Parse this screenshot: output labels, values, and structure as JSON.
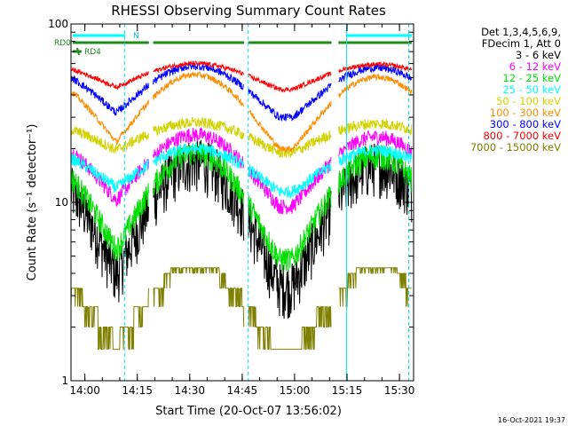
{
  "chart_data": {
    "type": "line",
    "title": "RHESSI Observing Summary Count Rates",
    "xlabel": "Start Time (20-Oct-07 13:56:02)",
    "ylabel": "Count Rate (s⁻¹ detector⁻¹)",
    "yscale": "log",
    "ylim": [
      1,
      100
    ],
    "xlim_minutes": [
      0,
      98
    ],
    "x_ticks": [
      "14:00",
      "14:15",
      "14:30",
      "14:45",
      "15:00",
      "15:15",
      "15:30"
    ],
    "y_ticks": [
      "1",
      "10",
      "100"
    ],
    "legend_header": [
      "Det 1,3,4,5,6,9,",
      "FDecim 1, Att 0"
    ],
    "series": [
      {
        "name": "3 - 6 keV",
        "color": "#000000",
        "min": 3.4,
        "peak": 17,
        "jitter": 0.35
      },
      {
        "name": "6 - 12 keV",
        "color": "#ff00ff",
        "min": 9.5,
        "peak": 24,
        "jitter": 0.1
      },
      {
        "name": "12 - 25 keV",
        "color": "#00e000",
        "min": 4.8,
        "peak": 19,
        "jitter": 0.16
      },
      {
        "name": "25 - 50 keV",
        "color": "#00ffff",
        "min": 11.5,
        "peak": 20,
        "jitter": 0.08
      },
      {
        "name": "50 - 100 keV",
        "color": "#d2d200",
        "min": 19,
        "peak": 28,
        "jitter": 0.07
      },
      {
        "name": "100 - 300 keV",
        "color": "#ff8c00",
        "min": 20,
        "peak": 52,
        "jitter": 0.04
      },
      {
        "name": "300 - 800 keV",
        "color": "#0000ff",
        "min": 30,
        "peak": 58,
        "jitter": 0.05
      },
      {
        "name": "800 - 7000 keV",
        "color": "#ff0000",
        "min": 43,
        "peak": 60,
        "jitter": 0.03
      },
      {
        "name": "7000 - 15000 keV",
        "color": "#808000",
        "min": 1.5,
        "peak": 4.3,
        "jitter": 0
      }
    ],
    "orbit_flags": [
      {
        "name": "RD0",
        "color": "#1e8c1e",
        "segments": [
          [
            0.5,
            22.3
          ],
          [
            23.5,
            49.5
          ],
          [
            50.7,
            74.5
          ],
          [
            76.5,
            97.5
          ]
        ]
      },
      {
        "name": "RD4",
        "color": "#1e8c1e",
        "segments": [
          [
            0.5,
            3.0
          ]
        ]
      },
      {
        "name": "N",
        "color": "#00ffff",
        "segments": [
          [
            0.5,
            15.5
          ],
          [
            78.8,
            97.5
          ]
        ]
      }
    ],
    "region_lines_minutes": {
      "solid": [
        0.0,
        78.8
      ],
      "dashed": [
        15.3,
        50.7,
        96.6
      ]
    },
    "gaps_minutes": [
      [
        22.3,
        23.5
      ],
      [
        49.5,
        50.7
      ],
      [
        74.5,
        76.5
      ]
    ]
  },
  "timestamp": "16-Oct-2021 19:37"
}
